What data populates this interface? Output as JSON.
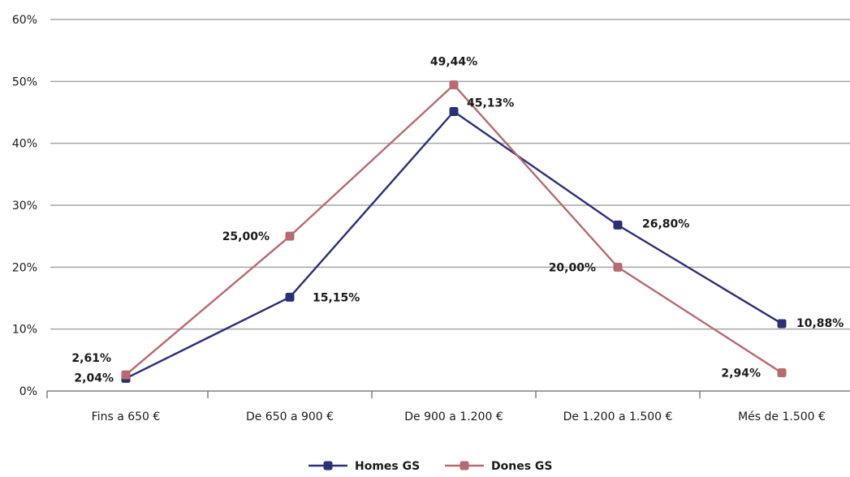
{
  "chart_data": {
    "type": "line",
    "title": "",
    "xlabel": "",
    "ylabel": "",
    "categories": [
      "Fins a 650 €",
      "De 650 a 900 €",
      "De 900 a 1.200 €",
      "De 1.200 a 1.500 €",
      "Més de 1.500 €"
    ],
    "ylim": [
      0,
      60
    ],
    "y_ticks": [
      0,
      10,
      20,
      30,
      40,
      50,
      60
    ],
    "y_tick_labels": [
      "0%",
      "10%",
      "20%",
      "30%",
      "40%",
      "50%",
      "60%"
    ],
    "grid": true,
    "legend_position": "bottom-center",
    "series": [
      {
        "name": "Homes GS",
        "color": "#2b2f77",
        "values": [
          2.04,
          15.15,
          45.13,
          26.8,
          10.88
        ],
        "labels": [
          "2,04%",
          "15,15%",
          "45,13%",
          "26,80%",
          "10,88%"
        ]
      },
      {
        "name": "Dones GS",
        "color": "#b86a70",
        "values": [
          2.61,
          25.0,
          49.44,
          20.0,
          2.94
        ],
        "labels": [
          "2,61%",
          "25,00%",
          "49,44%",
          "20,00%",
          "2,94%"
        ]
      }
    ],
    "colors": {
      "grid": "#a6a6a6",
      "axis": "#7f7f7f"
    }
  }
}
